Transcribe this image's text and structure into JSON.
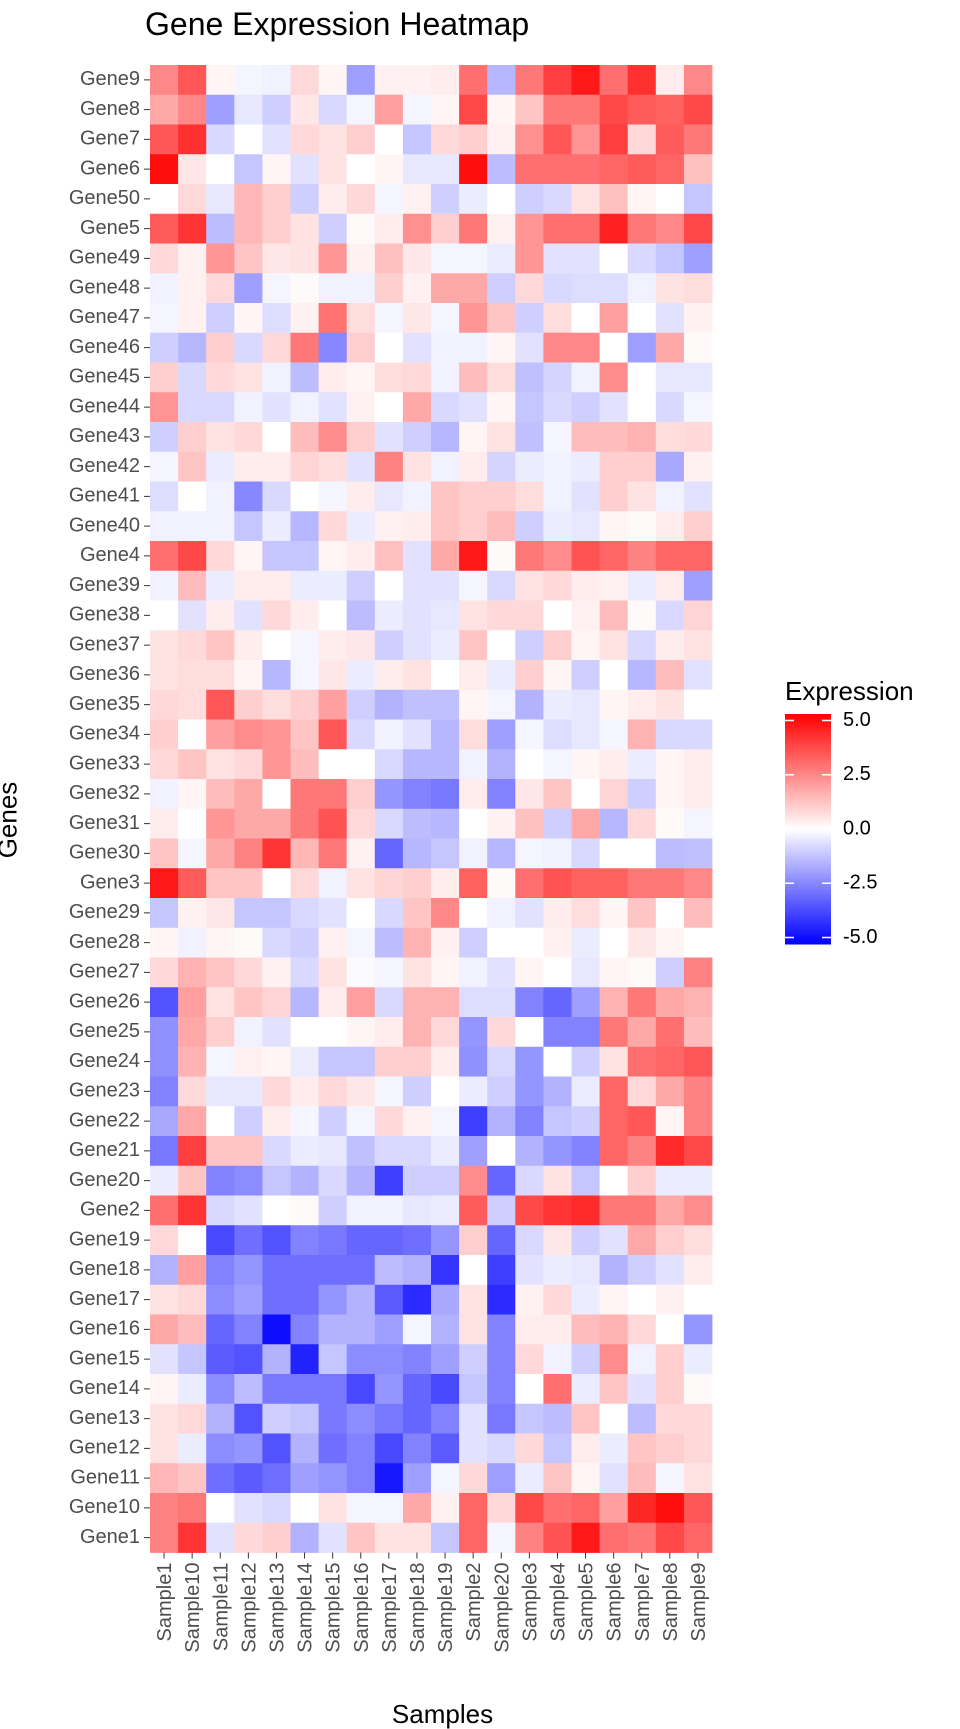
{
  "chart_data": {
    "type": "heatmap",
    "title": "Gene Expression Heatmap",
    "xlabel": "Samples",
    "ylabel": "Genes",
    "x_categories": [
      "Sample1",
      "Sample10",
      "Sample11",
      "Sample12",
      "Sample13",
      "Sample14",
      "Sample15",
      "Sample16",
      "Sample17",
      "Sample18",
      "Sample19",
      "Sample2",
      "Sample20",
      "Sample3",
      "Sample4",
      "Sample5",
      "Sample6",
      "Sample7",
      "Sample8",
      "Sample9"
    ],
    "y_categories": [
      "Gene9",
      "Gene8",
      "Gene7",
      "Gene6",
      "Gene50",
      "Gene5",
      "Gene49",
      "Gene48",
      "Gene47",
      "Gene46",
      "Gene45",
      "Gene44",
      "Gene43",
      "Gene42",
      "Gene41",
      "Gene40",
      "Gene4",
      "Gene39",
      "Gene38",
      "Gene37",
      "Gene36",
      "Gene35",
      "Gene34",
      "Gene33",
      "Gene32",
      "Gene31",
      "Gene30",
      "Gene3",
      "Gene29",
      "Gene28",
      "Gene27",
      "Gene26",
      "Gene25",
      "Gene24",
      "Gene23",
      "Gene22",
      "Gene21",
      "Gene20",
      "Gene2",
      "Gene19",
      "Gene18",
      "Gene17",
      "Gene16",
      "Gene15",
      "Gene14",
      "Gene13",
      "Gene12",
      "Gene11",
      "Gene10",
      "Gene1"
    ],
    "values": [
      [
        2.5,
        3.5,
        0.2,
        -0.2,
        -0.3,
        0.8,
        0.2,
        -2.0,
        0.3,
        0.3,
        0.4,
        3.0,
        -1.5,
        2.8,
        4.0,
        4.8,
        3.0,
        4.3,
        0.4,
        2.5
      ],
      [
        1.8,
        2.5,
        -2.0,
        -0.5,
        -1.0,
        0.5,
        -0.8,
        -0.2,
        2.0,
        -0.2,
        0.2,
        3.8,
        0.2,
        1.2,
        2.8,
        2.8,
        3.8,
        3.4,
        3.3,
        3.8
      ],
      [
        3.5,
        4.3,
        -0.8,
        0.0,
        -0.6,
        0.8,
        0.6,
        1.0,
        0.0,
        -1.2,
        0.8,
        1.0,
        0.3,
        2.3,
        3.5,
        2.2,
        4.0,
        0.8,
        3.4,
        2.8
      ],
      [
        5.0,
        0.5,
        0.0,
        -1.2,
        0.2,
        -0.6,
        0.6,
        0.0,
        0.2,
        -0.5,
        -0.5,
        5.0,
        -1.4,
        3.0,
        3.0,
        3.0,
        3.2,
        3.4,
        3.2,
        1.3
      ],
      [
        0.0,
        0.8,
        -0.5,
        1.5,
        1.0,
        -1.0,
        0.4,
        0.8,
        -0.2,
        0.3,
        -1.0,
        -0.4,
        0.0,
        -1.0,
        -0.8,
        0.6,
        1.3,
        0.2,
        0.0,
        -1.2
      ],
      [
        3.4,
        4.2,
        -1.4,
        1.5,
        1.0,
        0.6,
        -1.0,
        0.1,
        0.4,
        2.3,
        1.0,
        2.8,
        0.3,
        2.2,
        3.0,
        3.0,
        4.6,
        2.8,
        2.5,
        3.8
      ],
      [
        0.8,
        0.3,
        2.2,
        1.2,
        0.5,
        0.6,
        2.2,
        0.3,
        1.3,
        0.5,
        -0.2,
        -0.2,
        -0.4,
        2.2,
        -0.6,
        -0.6,
        0.0,
        -0.8,
        -1.2,
        -2.0
      ],
      [
        -0.3,
        0.3,
        0.8,
        -2.0,
        -0.2,
        0.1,
        -0.3,
        -0.3,
        1.0,
        0.3,
        1.8,
        1.8,
        -1.0,
        0.8,
        -0.8,
        -0.7,
        -0.7,
        -0.3,
        0.6,
        0.7
      ],
      [
        -0.2,
        0.3,
        -1.0,
        0.2,
        -0.7,
        0.3,
        2.9,
        0.7,
        -0.2,
        0.5,
        -0.2,
        2.2,
        1.2,
        -1.0,
        0.7,
        0.0,
        2.0,
        0.0,
        -0.6,
        0.3
      ],
      [
        -1.0,
        -1.5,
        1.0,
        -0.8,
        0.8,
        2.8,
        -2.5,
        1.0,
        0.0,
        -0.6,
        -0.3,
        -0.3,
        0.2,
        -0.6,
        2.5,
        2.5,
        0.0,
        -2.0,
        1.8,
        0.1
      ],
      [
        1.0,
        -0.8,
        0.8,
        0.6,
        -0.3,
        -1.4,
        0.4,
        0.2,
        0.7,
        0.8,
        -0.3,
        1.4,
        0.7,
        -1.3,
        -0.9,
        -0.3,
        2.4,
        0.0,
        -0.5,
        -0.5
      ],
      [
        2.2,
        -0.8,
        -0.8,
        -0.3,
        -0.6,
        -0.3,
        -0.6,
        0.3,
        0.0,
        1.8,
        -0.8,
        -0.6,
        0.2,
        -1.2,
        -0.8,
        -1.0,
        -0.6,
        0.0,
        -0.8,
        -0.2
      ],
      [
        -1.0,
        1.0,
        0.6,
        0.8,
        0.0,
        1.4,
        2.4,
        1.0,
        -0.6,
        -1.0,
        -1.5,
        0.2,
        0.6,
        -1.3,
        -0.2,
        1.4,
        1.4,
        1.6,
        0.7,
        0.8
      ],
      [
        -0.2,
        1.2,
        -0.4,
        0.4,
        0.4,
        0.9,
        0.7,
        -0.6,
        2.6,
        0.6,
        -0.3,
        0.4,
        -0.9,
        -0.4,
        -0.3,
        -0.4,
        1.0,
        1.0,
        -1.8,
        0.3
      ],
      [
        -0.7,
        0.0,
        -0.3,
        -2.5,
        -0.8,
        0.0,
        -0.2,
        0.4,
        -0.5,
        -0.3,
        1.2,
        1.0,
        1.0,
        0.7,
        -0.3,
        -0.6,
        1.0,
        0.6,
        -0.3,
        -0.6
      ],
      [
        -0.3,
        -0.3,
        -0.3,
        -1.2,
        -0.4,
        -1.5,
        0.8,
        -0.4,
        0.3,
        0.4,
        1.2,
        1.0,
        1.4,
        -1.0,
        -0.4,
        -0.5,
        0.2,
        0.1,
        0.4,
        1.0
      ],
      [
        3.0,
        3.8,
        0.8,
        0.2,
        -1.2,
        -1.2,
        0.2,
        0.4,
        1.3,
        -0.6,
        1.8,
        4.8,
        0.1,
        2.8,
        2.4,
        3.6,
        3.2,
        2.6,
        3.2,
        3.2
      ],
      [
        -0.3,
        1.4,
        -0.4,
        0.4,
        0.4,
        -0.4,
        -0.4,
        -1.0,
        0.0,
        -0.6,
        -0.6,
        -0.2,
        -0.8,
        0.6,
        0.8,
        0.4,
        0.3,
        -0.4,
        0.4,
        -2.0
      ],
      [
        0.0,
        -0.6,
        0.4,
        -0.6,
        0.8,
        0.4,
        0.0,
        -1.4,
        -0.4,
        -0.6,
        -0.5,
        0.6,
        0.8,
        0.8,
        0.0,
        0.3,
        1.4,
        0.1,
        -0.8,
        0.9
      ],
      [
        0.6,
        0.8,
        1.2,
        0.4,
        0.0,
        -0.2,
        0.4,
        0.5,
        -1.0,
        -0.6,
        -0.4,
        1.2,
        0.0,
        -1.0,
        1.0,
        0.2,
        0.6,
        -0.8,
        0.4,
        0.6
      ],
      [
        0.6,
        0.7,
        0.7,
        0.2,
        -1.5,
        -0.2,
        0.5,
        -0.4,
        0.4,
        0.6,
        0.0,
        0.4,
        -0.4,
        1.0,
        0.2,
        -1.0,
        0.0,
        -1.5,
        1.4,
        -0.6
      ],
      [
        0.8,
        0.7,
        3.5,
        1.0,
        0.7,
        1.0,
        2.0,
        -1.0,
        -1.6,
        -1.3,
        -1.3,
        0.2,
        -0.2,
        -1.6,
        -0.4,
        -0.5,
        0.2,
        0.4,
        0.6,
        0.0
      ],
      [
        1.0,
        0.0,
        2.0,
        2.4,
        2.2,
        1.2,
        3.5,
        -0.8,
        -0.3,
        -0.6,
        -1.5,
        0.7,
        -2.0,
        -0.2,
        -0.7,
        -0.5,
        -0.2,
        1.6,
        -0.8,
        -0.8
      ],
      [
        0.8,
        1.2,
        0.6,
        0.8,
        2.2,
        1.4,
        0.0,
        0.0,
        -0.8,
        -1.5,
        -1.5,
        -0.3,
        -1.6,
        0.0,
        -0.2,
        0.2,
        0.4,
        -0.4,
        0.2,
        0.4
      ],
      [
        -0.3,
        0.2,
        1.4,
        1.8,
        0.0,
        2.8,
        2.8,
        1.0,
        -2.2,
        -2.6,
        -2.8,
        0.4,
        -2.6,
        0.5,
        1.2,
        0.0,
        0.9,
        -1.0,
        0.2,
        0.4
      ],
      [
        0.4,
        0.0,
        2.2,
        1.8,
        1.8,
        2.8,
        3.6,
        0.8,
        -0.8,
        -1.4,
        -1.5,
        0.0,
        0.3,
        1.3,
        -1.0,
        1.8,
        -1.5,
        0.8,
        0.1,
        -0.2
      ],
      [
        1.2,
        -0.2,
        1.8,
        2.6,
        4.2,
        1.5,
        2.8,
        0.3,
        -3.2,
        -1.5,
        -1.2,
        -0.3,
        -1.5,
        -0.2,
        -0.3,
        -0.8,
        0.0,
        0.0,
        -1.4,
        -1.3
      ],
      [
        4.8,
        3.4,
        1.2,
        1.2,
        0.0,
        0.8,
        -0.3,
        0.6,
        0.9,
        1.0,
        0.4,
        3.3,
        0.1,
        3.0,
        3.6,
        3.3,
        3.3,
        2.8,
        2.8,
        2.5
      ],
      [
        -1.2,
        0.3,
        0.5,
        -1.2,
        -1.2,
        -0.8,
        -0.6,
        0.0,
        -0.8,
        1.2,
        2.5,
        0.0,
        -0.3,
        -0.6,
        0.4,
        0.7,
        0.2,
        1.2,
        0.0,
        1.4
      ],
      [
        0.2,
        -0.3,
        0.2,
        0.1,
        -0.8,
        -1.0,
        0.3,
        -0.2,
        -1.4,
        1.6,
        0.3,
        -1.0,
        0.0,
        0.0,
        0.3,
        -0.4,
        0.0,
        0.5,
        0.2,
        0.0
      ],
      [
        0.8,
        1.6,
        1.2,
        0.8,
        0.3,
        -0.8,
        0.6,
        -0.1,
        -0.2,
        0.6,
        0.2,
        -0.3,
        -0.6,
        0.2,
        0.0,
        -0.5,
        0.2,
        0.1,
        -1.0,
        2.6
      ],
      [
        -3.6,
        2.0,
        0.6,
        1.2,
        0.9,
        -1.5,
        0.4,
        2.0,
        -0.8,
        1.6,
        1.6,
        -0.7,
        -0.7,
        -2.6,
        -3.2,
        -2.0,
        1.6,
        2.8,
        1.8,
        1.6
      ],
      [
        -2.3,
        1.8,
        1.0,
        -0.3,
        -0.6,
        0.0,
        0.0,
        0.2,
        0.4,
        1.6,
        0.8,
        -2.2,
        0.8,
        0.0,
        -2.6,
        -2.6,
        2.8,
        1.8,
        3.0,
        1.4
      ],
      [
        -2.3,
        1.6,
        -0.2,
        0.3,
        0.2,
        -0.4,
        -1.2,
        -1.2,
        1.0,
        1.0,
        0.4,
        -2.3,
        -0.8,
        -2.2,
        0.0,
        -1.0,
        0.6,
        3.0,
        3.2,
        3.5
      ],
      [
        -2.6,
        0.8,
        -0.5,
        -0.5,
        0.8,
        0.4,
        0.8,
        0.5,
        -0.2,
        -1.0,
        0.0,
        -0.4,
        -1.0,
        -2.2,
        -1.6,
        -0.4,
        3.2,
        0.8,
        1.8,
        2.6
      ],
      [
        -1.8,
        1.8,
        0.0,
        -1.0,
        0.4,
        -0.2,
        -1.0,
        -0.2,
        0.8,
        0.3,
        -0.2,
        -4.0,
        -1.6,
        -2.6,
        -1.2,
        -1.0,
        3.2,
        3.5,
        0.2,
        2.6
      ],
      [
        -2.8,
        4.0,
        1.2,
        1.2,
        -0.8,
        -0.4,
        -0.5,
        -1.3,
        -0.8,
        -0.8,
        -0.4,
        -2.0,
        0.0,
        -1.6,
        -2.2,
        -2.6,
        3.2,
        2.6,
        4.4,
        3.8
      ],
      [
        -0.4,
        1.2,
        -2.6,
        -2.4,
        -1.2,
        -1.6,
        -0.8,
        -1.6,
        -4.0,
        -1.0,
        -1.0,
        2.4,
        -3.2,
        -0.8,
        0.6,
        -1.2,
        0.0,
        1.0,
        -0.4,
        -0.4
      ],
      [
        3.0,
        4.2,
        -0.8,
        -0.6,
        0.0,
        0.1,
        -1.0,
        -0.3,
        -0.3,
        -0.5,
        -0.4,
        3.4,
        -1.0,
        3.8,
        4.2,
        4.4,
        2.8,
        2.8,
        1.8,
        2.4
      ],
      [
        0.8,
        0.0,
        -3.8,
        -3.0,
        -3.6,
        -2.6,
        -2.8,
        -3.2,
        -3.2,
        -3.0,
        -2.2,
        1.0,
        -3.2,
        -0.8,
        0.5,
        -1.0,
        -0.6,
        1.8,
        1.0,
        0.7
      ],
      [
        -1.6,
        2.0,
        -2.6,
        -2.2,
        -3.0,
        -3.0,
        -3.0,
        -3.0,
        -1.4,
        -1.6,
        -4.2,
        0.0,
        -4.0,
        -0.6,
        -0.4,
        -0.5,
        -1.6,
        -1.0,
        -0.6,
        0.4
      ],
      [
        0.6,
        0.8,
        -2.4,
        -2.0,
        -3.0,
        -3.0,
        -2.2,
        -1.6,
        -3.4,
        -4.4,
        -1.8,
        0.6,
        -4.4,
        0.3,
        0.8,
        -0.4,
        0.2,
        0.0,
        0.3,
        0.0
      ],
      [
        1.8,
        1.4,
        -3.2,
        -2.6,
        -5.0,
        -2.6,
        -1.6,
        -1.6,
        -2.0,
        -0.2,
        -1.6,
        0.6,
        -2.6,
        0.4,
        0.4,
        1.4,
        1.6,
        0.8,
        0.0,
        -2.2
      ],
      [
        -0.6,
        -1.2,
        -3.4,
        -3.6,
        -1.6,
        -4.6,
        -1.2,
        -2.4,
        -2.4,
        -2.6,
        -2.0,
        -1.0,
        -2.6,
        0.8,
        -0.3,
        -1.0,
        2.4,
        -0.3,
        1.0,
        -0.4
      ],
      [
        0.2,
        -0.4,
        -2.4,
        -1.4,
        -2.8,
        -2.8,
        -2.8,
        -3.8,
        -2.2,
        -3.2,
        -3.8,
        -1.2,
        -2.6,
        0.0,
        3.0,
        -0.4,
        1.2,
        -0.6,
        1.0,
        0.1
      ],
      [
        0.6,
        0.8,
        -1.6,
        -3.6,
        -1.0,
        -1.2,
        -2.8,
        -2.4,
        -2.8,
        -3.2,
        -2.6,
        -0.6,
        -2.8,
        -1.2,
        -1.4,
        1.2,
        0.0,
        -1.4,
        0.8,
        0.8
      ],
      [
        0.6,
        -0.4,
        -2.4,
        -2.2,
        -3.6,
        -1.6,
        -3.0,
        -2.6,
        -3.8,
        -2.6,
        -3.4,
        -0.6,
        -0.8,
        0.8,
        -1.2,
        0.4,
        -0.4,
        1.2,
        1.0,
        0.8
      ],
      [
        1.5,
        1.2,
        -3.0,
        -3.4,
        -3.0,
        -2.0,
        -2.2,
        -2.6,
        -4.8,
        -2.0,
        -0.2,
        0.8,
        -2.0,
        -0.4,
        1.2,
        0.2,
        -0.6,
        1.4,
        -0.2,
        0.6
      ],
      [
        2.6,
        2.8,
        0.0,
        -0.6,
        -0.8,
        0.0,
        0.6,
        -0.2,
        -0.2,
        1.8,
        0.3,
        3.2,
        0.8,
        3.8,
        3.0,
        3.2,
        2.0,
        4.5,
        5.0,
        3.5
      ],
      [
        2.6,
        4.2,
        -0.6,
        0.8,
        1.0,
        -1.6,
        -0.6,
        1.2,
        0.6,
        0.6,
        -1.2,
        3.2,
        -0.2,
        2.6,
        3.6,
        4.8,
        3.0,
        2.8,
        3.8,
        3.2
      ]
    ],
    "colorbar": {
      "title": "Expression",
      "ticks": [
        5.0,
        2.5,
        0.0,
        -2.5,
        -5.0
      ],
      "tick_labels": [
        "5.0",
        "2.5",
        "0.0",
        "-2.5",
        "-5.0"
      ],
      "range": [
        -5.3,
        5.3
      ],
      "low_color": "#0000ff",
      "mid_color": "#ffffff",
      "high_color": "#ff0000"
    },
    "colors": {
      "panel_background": "#ebebeb",
      "grid": "#ffffff"
    },
    "legend_position": "right"
  }
}
